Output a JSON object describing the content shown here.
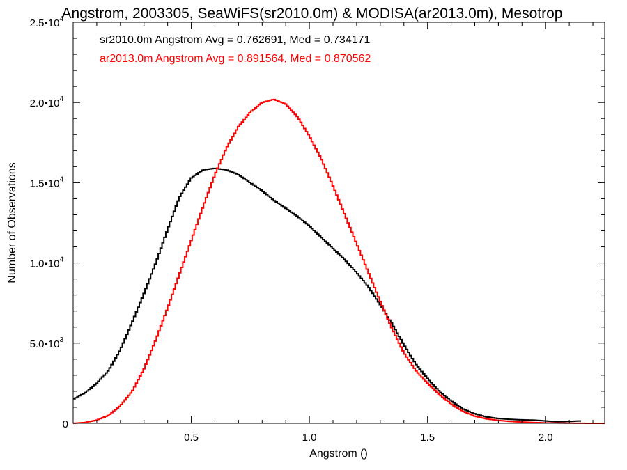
{
  "chart_data": {
    "type": "line",
    "title": "Angstrom, 2003305, SeaWiFS(sr2010.0m) & MODISA(ar2013.0m), Mesotrop",
    "xlabel": "Angstrom ()",
    "ylabel": "Number of Observations",
    "xlim": [
      0.0,
      2.25
    ],
    "ylim": [
      0,
      25000
    ],
    "x_ticks": [
      {
        "value": 0.5,
        "label": "0.5"
      },
      {
        "value": 1.0,
        "label": "1.0"
      },
      {
        "value": 1.5,
        "label": "1.5"
      },
      {
        "value": 2.0,
        "label": "2.0"
      }
    ],
    "y_ticks": [
      {
        "value": 0,
        "mant": "0",
        "exp": ""
      },
      {
        "value": 5000,
        "mant": "5.0•10",
        "exp": "3"
      },
      {
        "value": 10000,
        "mant": "1.0•10",
        "exp": "4"
      },
      {
        "value": 15000,
        "mant": "1.5•10",
        "exp": "4"
      },
      {
        "value": 20000,
        "mant": "2.0•10",
        "exp": "4"
      },
      {
        "value": 25000,
        "mant": "2.5•10",
        "exp": "4"
      }
    ],
    "grid": false,
    "legend_position": "top-left",
    "series": [
      {
        "legend": "sr2010.0m Angstrom Avg = 0.762691, Med = 0.734171",
        "color": "#000000",
        "points": [
          [
            0.0,
            1500
          ],
          [
            0.05,
            1900
          ],
          [
            0.1,
            2500
          ],
          [
            0.15,
            3300
          ],
          [
            0.2,
            4600
          ],
          [
            0.25,
            6300
          ],
          [
            0.3,
            8100
          ],
          [
            0.35,
            10000
          ],
          [
            0.4,
            12100
          ],
          [
            0.45,
            14100
          ],
          [
            0.5,
            15300
          ],
          [
            0.55,
            15800
          ],
          [
            0.6,
            15900
          ],
          [
            0.65,
            15800
          ],
          [
            0.7,
            15500
          ],
          [
            0.75,
            15000
          ],
          [
            0.8,
            14500
          ],
          [
            0.85,
            13900
          ],
          [
            0.9,
            13400
          ],
          [
            0.95,
            12900
          ],
          [
            1.0,
            12300
          ],
          [
            1.05,
            11600
          ],
          [
            1.1,
            10900
          ],
          [
            1.15,
            10200
          ],
          [
            1.2,
            9400
          ],
          [
            1.25,
            8500
          ],
          [
            1.3,
            7400
          ],
          [
            1.35,
            6200
          ],
          [
            1.4,
            4900
          ],
          [
            1.45,
            3700
          ],
          [
            1.5,
            2800
          ],
          [
            1.55,
            2000
          ],
          [
            1.6,
            1400
          ],
          [
            1.65,
            900
          ],
          [
            1.7,
            600
          ],
          [
            1.75,
            400
          ],
          [
            1.8,
            300
          ],
          [
            1.85,
            250
          ],
          [
            1.9,
            220
          ],
          [
            1.95,
            200
          ],
          [
            2.0,
            150
          ],
          [
            2.05,
            100
          ],
          [
            2.1,
            120
          ],
          [
            2.15,
            150
          ]
        ]
      },
      {
        "legend": "ar2013.0m Angstrom Avg = 0.891564, Med = 0.870562",
        "color": "#ff0000",
        "points": [
          [
            0.0,
            0
          ],
          [
            0.05,
            50
          ],
          [
            0.1,
            200
          ],
          [
            0.15,
            500
          ],
          [
            0.2,
            1100
          ],
          [
            0.25,
            2000
          ],
          [
            0.3,
            3400
          ],
          [
            0.35,
            5200
          ],
          [
            0.4,
            7200
          ],
          [
            0.45,
            9300
          ],
          [
            0.5,
            11400
          ],
          [
            0.55,
            13500
          ],
          [
            0.6,
            15500
          ],
          [
            0.65,
            17200
          ],
          [
            0.7,
            18500
          ],
          [
            0.75,
            19400
          ],
          [
            0.8,
            20000
          ],
          [
            0.85,
            20200
          ],
          [
            0.9,
            19900
          ],
          [
            0.95,
            19100
          ],
          [
            1.0,
            17900
          ],
          [
            1.05,
            16500
          ],
          [
            1.1,
            14800
          ],
          [
            1.15,
            13000
          ],
          [
            1.2,
            11200
          ],
          [
            1.25,
            9400
          ],
          [
            1.3,
            7600
          ],
          [
            1.35,
            5900
          ],
          [
            1.4,
            4400
          ],
          [
            1.45,
            3300
          ],
          [
            1.5,
            2500
          ],
          [
            1.55,
            1800
          ],
          [
            1.6,
            1200
          ],
          [
            1.65,
            750
          ],
          [
            1.7,
            450
          ],
          [
            1.75,
            280
          ],
          [
            1.8,
            180
          ],
          [
            1.85,
            120
          ],
          [
            1.9,
            80
          ],
          [
            1.95,
            50
          ],
          [
            2.0,
            30
          ],
          [
            2.05,
            20
          ],
          [
            2.1,
            10
          ],
          [
            2.15,
            5
          ],
          [
            2.2,
            0
          ],
          [
            2.25,
            0
          ]
        ]
      }
    ]
  }
}
